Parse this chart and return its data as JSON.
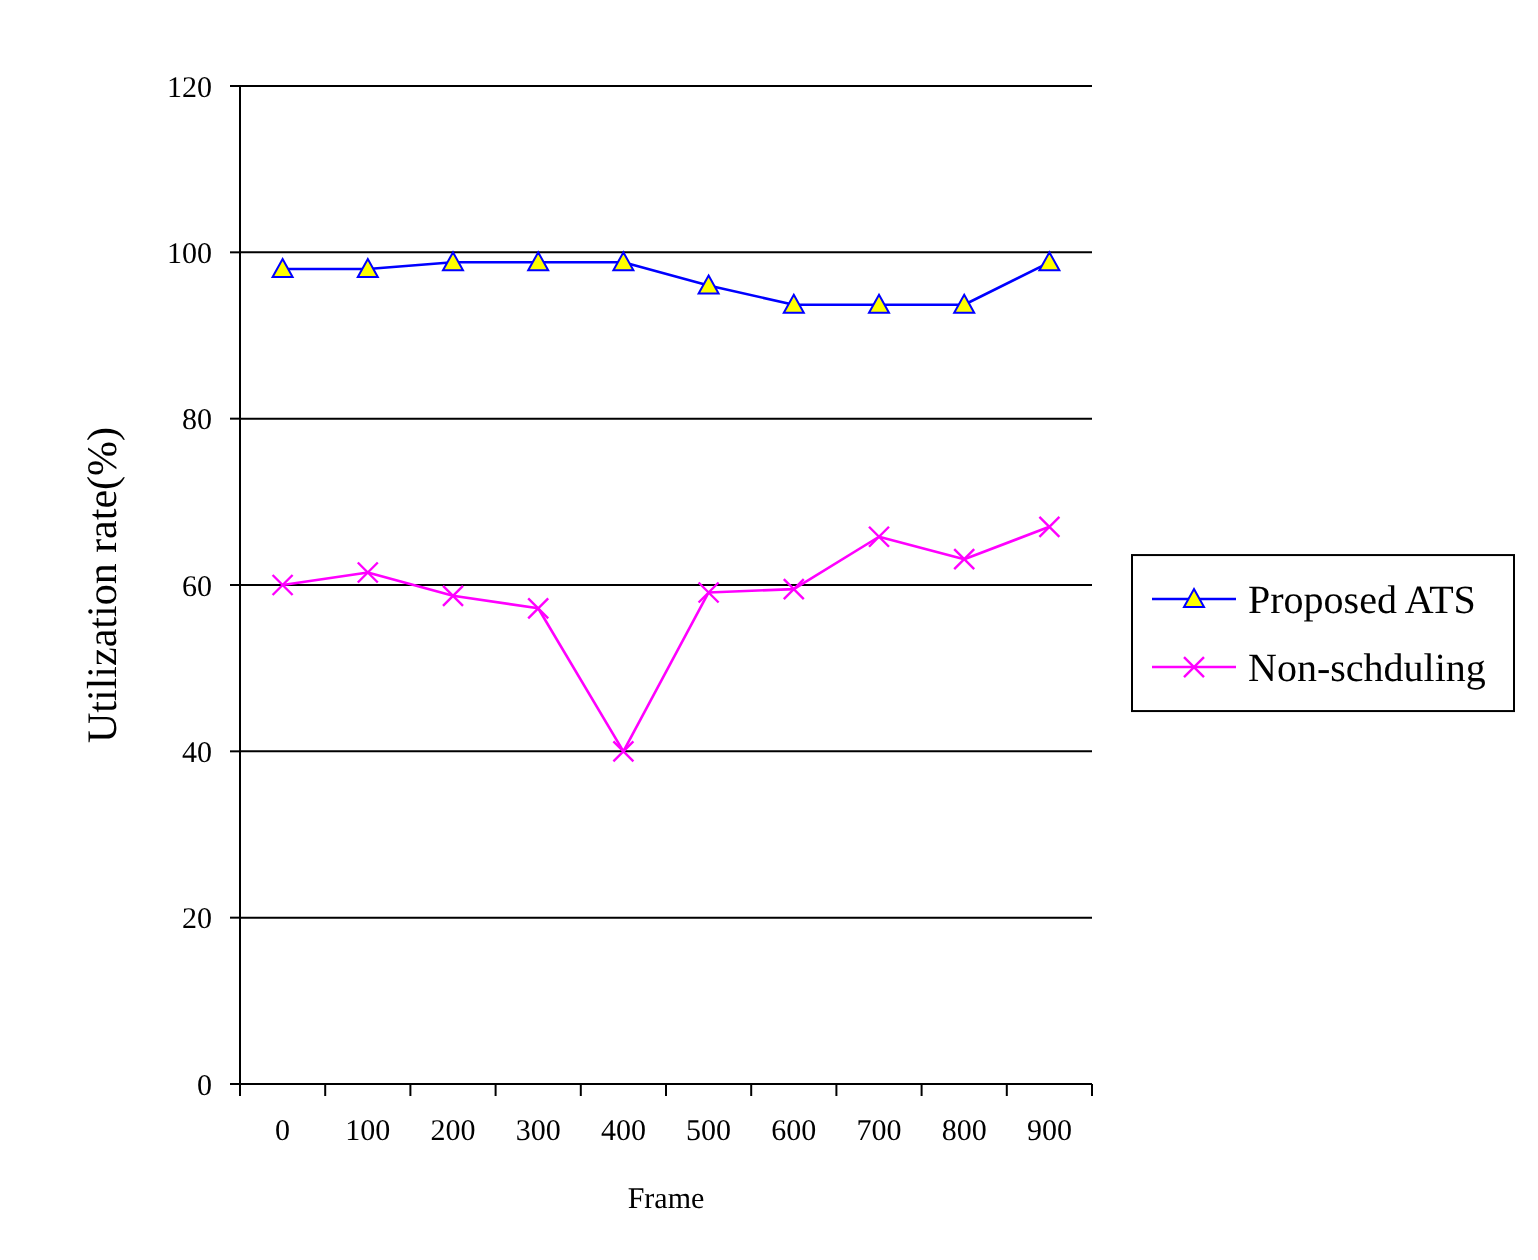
{
  "chart_data": {
    "type": "line",
    "xlabel": "Frame",
    "ylabel": "Utilization rate(%)",
    "categories": [
      "0",
      "100",
      "200",
      "300",
      "400",
      "500",
      "600",
      "700",
      "800",
      "900"
    ],
    "series": [
      {
        "name": "Proposed ATS",
        "color": "#0000ff",
        "marker": "triangle",
        "values": [
          98,
          98,
          98.8,
          98.8,
          98.8,
          96,
          93.7,
          93.7,
          93.7,
          98.8
        ]
      },
      {
        "name": "Non-schduling",
        "color": "#ff00ff",
        "marker": "cross",
        "values": [
          60,
          61.5,
          58.7,
          57.2,
          40,
          59.1,
          59.5,
          65.8,
          63.1,
          67
        ]
      }
    ],
    "ylim": [
      0,
      120
    ],
    "yticks": [
      0,
      20,
      40,
      60,
      80,
      100,
      120
    ],
    "grid": "y",
    "legend": "right"
  }
}
